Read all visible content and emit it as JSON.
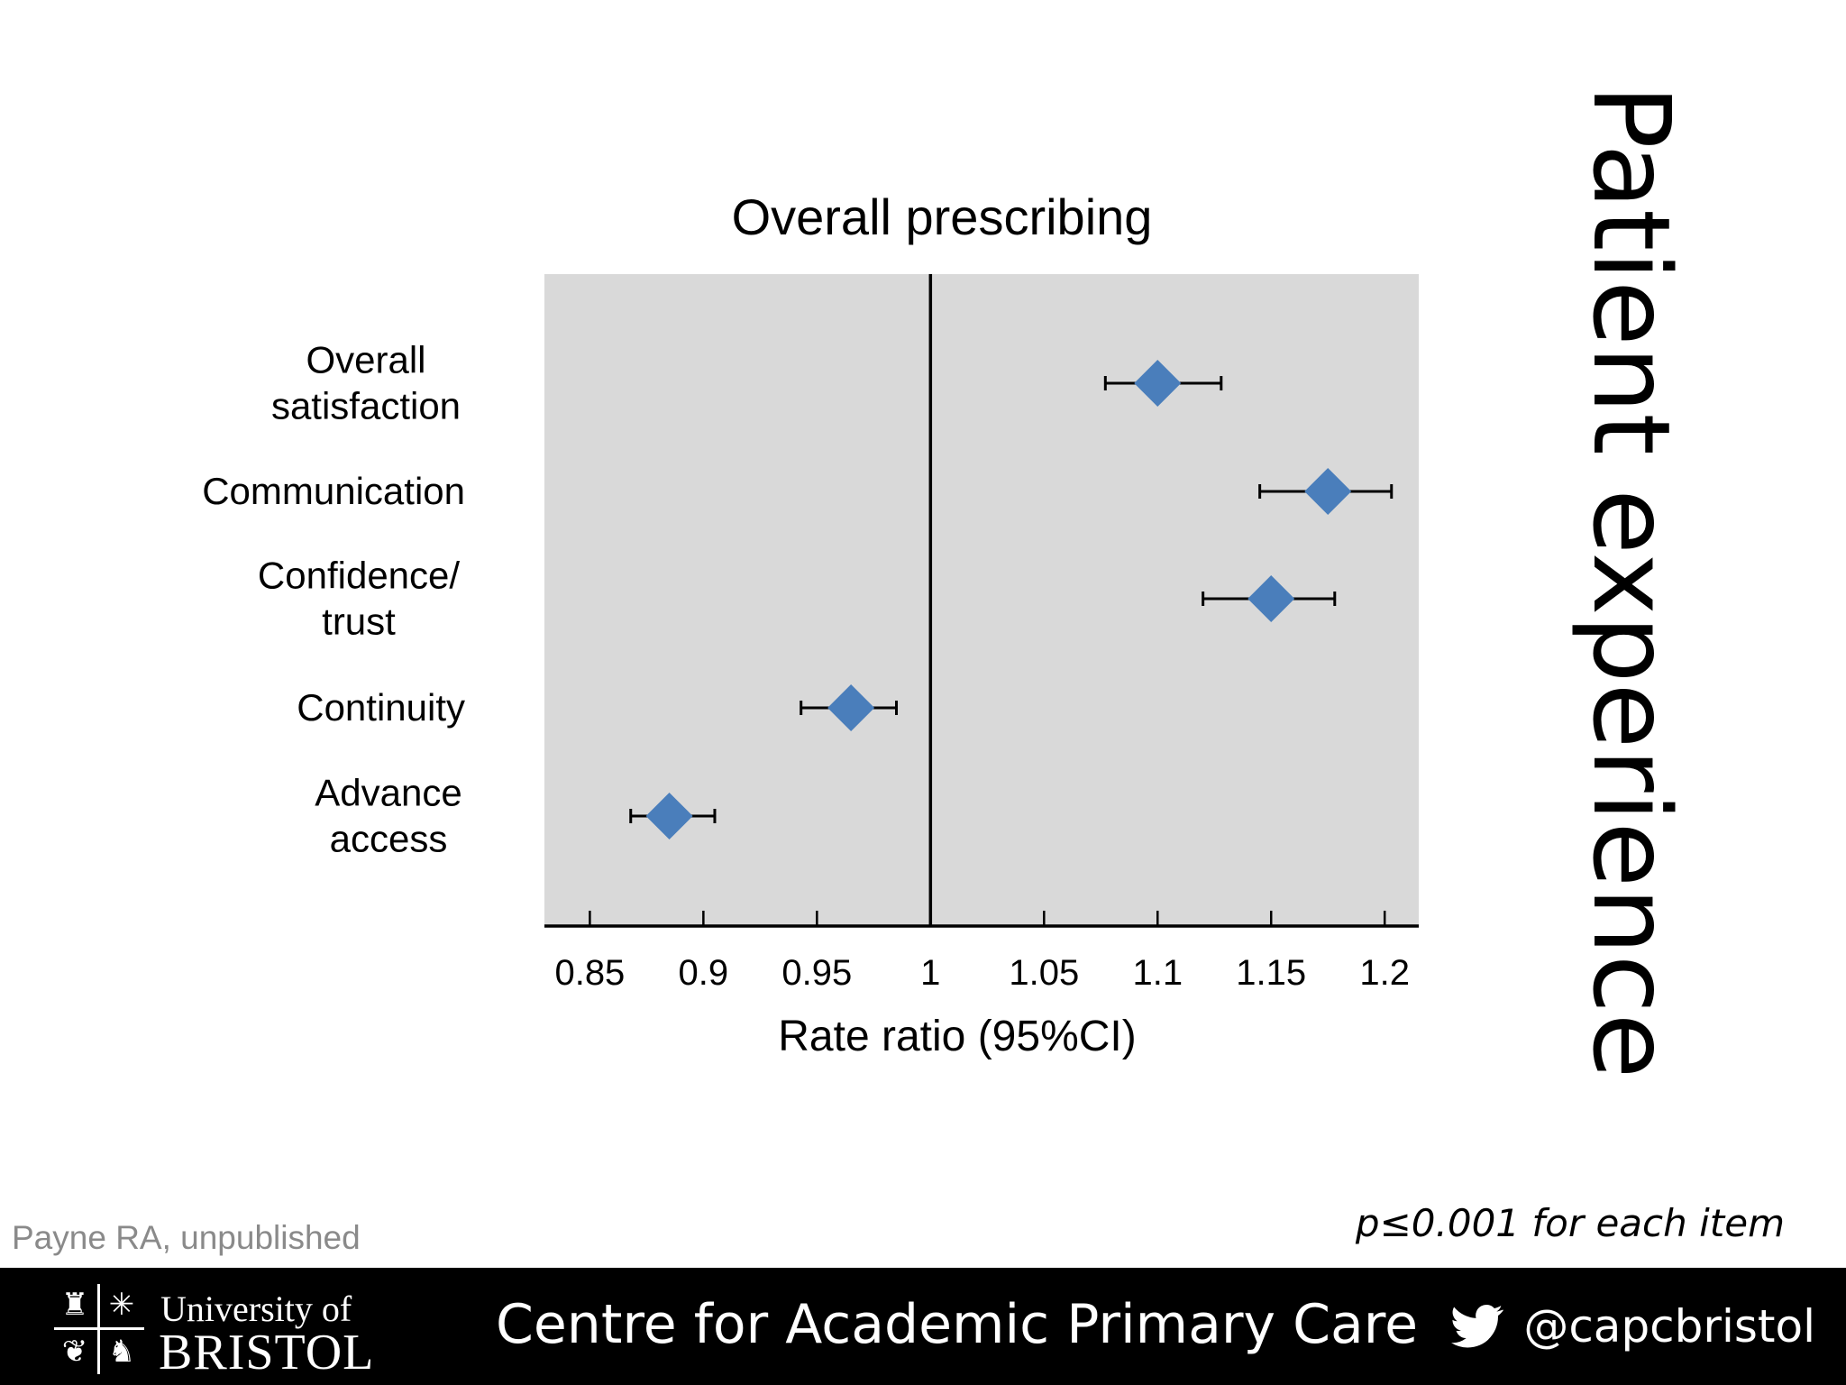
{
  "slide": {
    "side_title": "Patient experience",
    "source_note": "Payne RA, unpublished",
    "p_note": "p≤0.001 for each item"
  },
  "footer": {
    "logo_line1": "University of",
    "logo_line2": "BRISTOL",
    "centre_name": "Centre for Academic Primary Care",
    "twitter_handle": "@capcbristol",
    "twitter_icon": "twitter-bird-icon"
  },
  "colors": {
    "plot_background": "#d9d9d9",
    "marker": "#4a7ebb",
    "footer_background": "#000000"
  },
  "chart_data": {
    "type": "scatter",
    "subtype": "forest-plot",
    "title": "Overall prescribing",
    "xlabel": "Rate ratio (95%CI)",
    "ylabel": "",
    "xlim": [
      0.83,
      1.215
    ],
    "reference_line": 1,
    "xticks": [
      0.85,
      0.9,
      0.95,
      1,
      1.05,
      1.1,
      1.15,
      1.2
    ],
    "xtick_labels": [
      "0.85",
      "0.9",
      "0.95",
      "1",
      "1.05",
      "1.1",
      "1.15",
      "1.2"
    ],
    "grid": false,
    "categories": [
      [
        "Overall",
        "satisfaction"
      ],
      [
        "Communication"
      ],
      [
        "Confidence/",
        "trust"
      ],
      [
        "Continuity"
      ],
      [
        "Advance",
        "access"
      ]
    ],
    "estimates": [
      1.1,
      1.175,
      1.15,
      0.965,
      0.885
    ],
    "ci_lower": [
      1.077,
      1.145,
      1.12,
      0.943,
      0.868
    ],
    "ci_upper": [
      1.128,
      1.203,
      1.178,
      0.985,
      0.905
    ]
  }
}
